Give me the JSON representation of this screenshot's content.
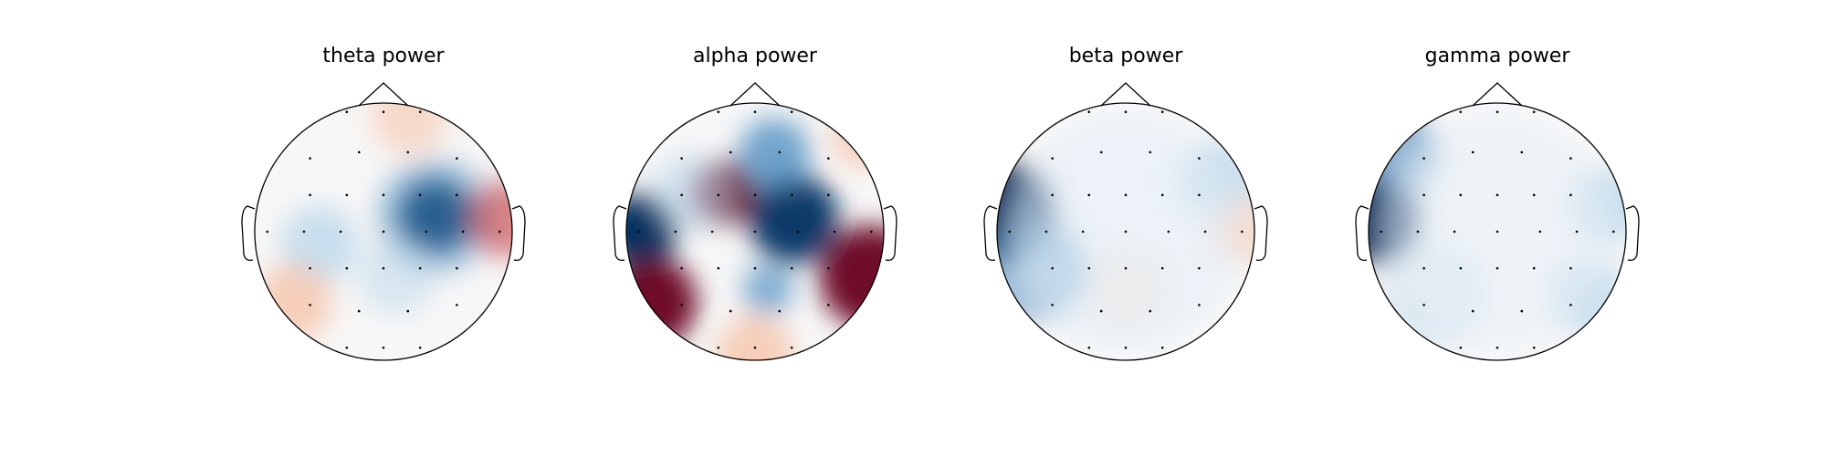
{
  "panels": [
    {
      "title": "theta power"
    },
    {
      "title": "alpha power"
    },
    {
      "title": "beta power"
    },
    {
      "title": "gamma power"
    }
  ]
}
